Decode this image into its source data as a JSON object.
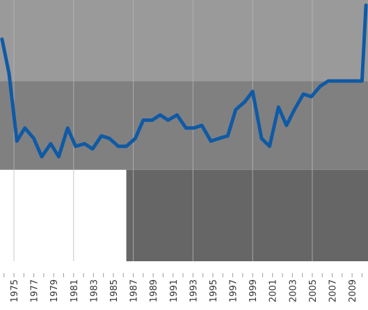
{
  "chart_data": {
    "type": "line",
    "title": "",
    "xlabel": "",
    "ylabel": "",
    "tick_labels": [
      "1975",
      "1977",
      "1979",
      "1981",
      "1983",
      "1985",
      "1987",
      "1989",
      "1991",
      "1993",
      "1995",
      "1997",
      "1999",
      "2001",
      "2003",
      "2005",
      "2007",
      "2009"
    ],
    "xlim": [
      1973.6,
      2010.6
    ],
    "ylim": [
      0,
      100
    ],
    "grid": true,
    "legend": "none",
    "line_color": "#0f5aa5",
    "band_colors": [
      "#9a9a9a",
      "#808080",
      "#666666"
    ],
    "series": [
      {
        "x": [
          1973.8,
          1974.5,
          1975.3,
          1976.1,
          1977,
          1977.8,
          1978.7,
          1979.5,
          1980.4,
          1981.2,
          1982.1,
          1982.9,
          1983.8,
          1984.6,
          1985.5,
          1986.3,
          1987.2,
          1988,
          1988.9,
          1989.7,
          1990.5,
          1991.4,
          1992.3,
          1993.1,
          1993.9,
          1994.8,
          1995.6,
          1996.5,
          1997.3,
          1998.2,
          1999,
          1999.9,
          2000.7,
          2001.6,
          2002.4,
          2003.2,
          2004.1,
          2004.9,
          2005.8,
          2006.6,
          2007.4,
          2008.3,
          2009.1,
          2010,
          2010.4
        ],
        "values": [
          85,
          72,
          46,
          51,
          47,
          40,
          45,
          40,
          51,
          44,
          45,
          43,
          48,
          47,
          44,
          44,
          47,
          54,
          54,
          56,
          54,
          56,
          51,
          51,
          52,
          46,
          47,
          48,
          58,
          61,
          65,
          47,
          44,
          59,
          52,
          58,
          64,
          63,
          67,
          69,
          69,
          69,
          69,
          69,
          98
        ]
      }
    ],
    "bands": [
      {
        "x0": 1973.6,
        "x1": 2010.6,
        "y0": 69,
        "y1": 100
      },
      {
        "x0": 1973.6,
        "x1": 2010.6,
        "y0": 35,
        "y1": 69
      },
      {
        "x0": 1986.3,
        "x1": 2010.6,
        "y0": 0,
        "y1": 35
      }
    ]
  }
}
